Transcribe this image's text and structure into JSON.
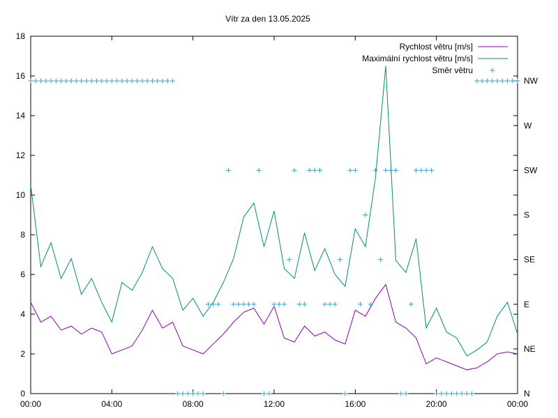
{
  "chart_data": {
    "type": "line",
    "title": "Vítr za den 13.05.2025",
    "x_ticks": [
      "00:00",
      "04:00",
      "08:00",
      "12:00",
      "16:00",
      "20:00",
      "00:00"
    ],
    "y_ticks": [
      "0",
      "2",
      "4",
      "6",
      "8",
      "10",
      "12",
      "14",
      "16",
      "18"
    ],
    "y2_ticks": [
      "N",
      "NE",
      "E",
      "SE",
      "S",
      "SW",
      "W",
      "NW"
    ],
    "ylim": [
      0,
      18
    ],
    "xlim_hours": [
      0,
      24
    ],
    "grid": false,
    "legend_position": "top-right",
    "colors": {
      "speed": "#8b00b8",
      "gust": "#009070",
      "direction": "#3ba0c8"
    },
    "series": [
      {
        "name": "Rychlost větru [m/s]",
        "x": [
          0,
          0.5,
          1,
          1.5,
          2,
          2.5,
          3,
          3.5,
          4,
          4.5,
          5,
          5.5,
          6,
          6.5,
          7,
          7.5,
          8,
          8.5,
          9,
          9.5,
          10,
          10.5,
          11,
          11.5,
          12,
          12.5,
          13,
          13.5,
          14,
          14.5,
          15,
          15.5,
          16,
          16.5,
          17,
          17.5,
          18,
          18.5,
          19,
          19.5,
          20,
          20.5,
          21,
          21.5,
          22,
          22.5,
          23,
          23.5,
          24
        ],
        "values": [
          4.6,
          3.6,
          3.9,
          3.2,
          3.4,
          3.0,
          3.3,
          3.1,
          2.0,
          2.2,
          2.4,
          3.2,
          4.2,
          3.3,
          3.6,
          2.4,
          2.2,
          2.0,
          2.5,
          3.0,
          3.6,
          4.1,
          4.3,
          3.5,
          4.4,
          2.8,
          2.6,
          3.4,
          2.9,
          3.1,
          2.7,
          2.5,
          4.2,
          3.9,
          4.8,
          5.5,
          3.6,
          3.3,
          2.8,
          1.5,
          1.8,
          1.6,
          1.4,
          1.2,
          1.3,
          1.6,
          2.0,
          2.1,
          2.0
        ]
      },
      {
        "name": "Maximální rychlost větru [m/s]",
        "x": [
          0,
          0.5,
          1,
          1.5,
          2,
          2.5,
          3,
          3.5,
          4,
          4.5,
          5,
          5.5,
          6,
          6.5,
          7,
          7.5,
          8,
          8.5,
          9,
          9.5,
          10,
          10.5,
          11,
          11.5,
          12,
          12.5,
          13,
          13.5,
          14,
          14.5,
          15,
          15.5,
          16,
          16.5,
          17,
          17.5,
          18,
          18.5,
          19,
          19.5,
          20,
          20.5,
          21,
          21.5,
          22,
          22.5,
          23,
          23.5,
          24
        ],
        "values": [
          10.5,
          6.4,
          7.6,
          5.8,
          6.8,
          5.0,
          5.8,
          4.6,
          3.6,
          5.6,
          5.2,
          6.1,
          7.4,
          6.3,
          5.8,
          4.2,
          4.8,
          3.9,
          4.6,
          5.6,
          6.8,
          8.9,
          9.6,
          7.4,
          9.2,
          6.3,
          5.8,
          8.1,
          6.2,
          7.3,
          6.0,
          5.4,
          8.3,
          7.4,
          10.9,
          16.5,
          6.7,
          6.1,
          7.8,
          3.3,
          4.3,
          3.1,
          2.8,
          1.9,
          2.2,
          2.6,
          3.9,
          4.6,
          3.0
        ]
      },
      {
        "name": "Směr větru",
        "type": "scatter",
        "x": [
          0,
          0.25,
          0.5,
          0.75,
          1,
          1.25,
          1.5,
          1.75,
          2,
          2.25,
          2.5,
          2.75,
          3,
          3.25,
          3.5,
          3.75,
          4,
          4.25,
          4.5,
          4.75,
          5,
          5.25,
          5.5,
          5.75,
          6,
          6.25,
          6.5,
          6.75,
          7,
          7.25,
          7.5,
          7.75,
          8,
          8.25,
          8.5,
          8.75,
          9,
          9.25,
          9.5,
          9.75,
          10,
          10.25,
          10.5,
          10.75,
          11,
          11.25,
          11.5,
          11.75,
          12,
          12.25,
          12.5,
          12.75,
          13,
          13.25,
          13.5,
          13.75,
          14,
          14.25,
          14.5,
          14.75,
          15,
          15.25,
          15.5,
          15.75,
          16,
          16.25,
          16.5,
          16.75,
          17,
          17.25,
          17.5,
          17.75,
          18,
          18.25,
          18.5,
          18.75,
          19,
          19.25,
          19.5,
          19.75,
          20,
          20.25,
          20.5,
          20.75,
          21,
          21.25,
          21.5,
          21.75,
          22,
          22.25,
          22.5,
          22.75,
          23,
          23.25,
          23.5,
          23.75,
          24
        ],
        "values": [
          "NW",
          "NW",
          "NW",
          "NW",
          "NW",
          "NW",
          "NW",
          "NW",
          "NW",
          "NW",
          "NW",
          "NW",
          "NW",
          "NW",
          "NW",
          "NW",
          "NW",
          "NW",
          "NW",
          "NW",
          "NW",
          "NW",
          "NW",
          "NW",
          "NW",
          "NW",
          "NW",
          "NW",
          "NW",
          "N",
          "N",
          "N",
          "N",
          "N",
          "N",
          "E",
          "E",
          "E",
          "N",
          "SW",
          "E",
          "E",
          "E",
          "E",
          "E",
          "SW",
          "N",
          "N",
          "E",
          "E",
          "E",
          "SE",
          "SW",
          "E",
          "E",
          "SW",
          "SW",
          "SW",
          "E",
          "E",
          "E",
          "SE",
          "N",
          "SW",
          "SW",
          "E",
          "S",
          "E",
          "SW",
          "SE",
          "SW",
          "SW",
          "SW",
          "N",
          "N",
          "E",
          "SW",
          "SW",
          "SW",
          "SW",
          "N",
          "N",
          "N",
          "N",
          "N",
          "N",
          "N",
          "N",
          "NW",
          "NW",
          "NW",
          "NW",
          "NW",
          "NW",
          "NW",
          "NW",
          "NW"
        ]
      }
    ]
  }
}
